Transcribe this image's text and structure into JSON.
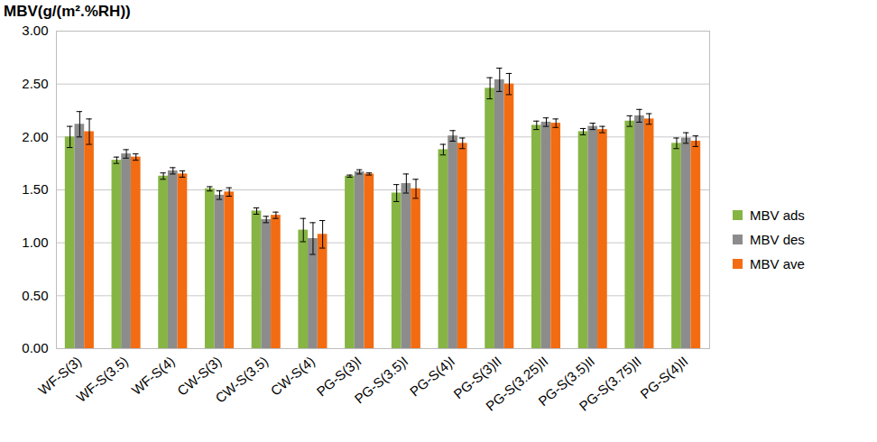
{
  "chart_data": {
    "type": "bar",
    "ylabel": "MBV(g/(m².%RH))",
    "categories": [
      "WF-S(3)",
      "WF-S(3.5)",
      "WF-S(4)",
      "CW-S(3)",
      "CW-S(3.5)",
      "CW-S(4)",
      "PG-S(3)I",
      "PG-S(3.5)I",
      "PG-S(4)I",
      "PG-S(3)II",
      "PG-S(3.25)II",
      "PG-S(3.5)II",
      "PG-S(3.75)II",
      "PG-S(4)II"
    ],
    "series": [
      {
        "name": "MBV ads",
        "color": "#86b544",
        "values": [
          2.0,
          1.78,
          1.63,
          1.51,
          1.3,
          1.12,
          1.63,
          1.47,
          1.88,
          2.46,
          2.11,
          2.05,
          2.15,
          1.94
        ],
        "errors": [
          0.1,
          0.03,
          0.03,
          0.02,
          0.03,
          0.11,
          0.01,
          0.08,
          0.05,
          0.1,
          0.04,
          0.03,
          0.05,
          0.05
        ]
      },
      {
        "name": "MBV des",
        "color": "#8c8c8c",
        "values": [
          2.12,
          1.84,
          1.68,
          1.45,
          1.22,
          1.04,
          1.67,
          1.56,
          2.01,
          2.54,
          2.14,
          2.1,
          2.2,
          1.99
        ],
        "errors": [
          0.12,
          0.04,
          0.03,
          0.04,
          0.03,
          0.15,
          0.02,
          0.09,
          0.05,
          0.11,
          0.04,
          0.03,
          0.06,
          0.05
        ]
      },
      {
        "name": "MBV ave",
        "color": "#f36c12",
        "values": [
          2.05,
          1.81,
          1.65,
          1.48,
          1.26,
          1.08,
          1.65,
          1.51,
          1.94,
          2.5,
          2.13,
          2.07,
          2.17,
          1.96
        ],
        "errors": [
          0.12,
          0.03,
          0.03,
          0.04,
          0.03,
          0.13,
          0.01,
          0.09,
          0.05,
          0.1,
          0.04,
          0.03,
          0.05,
          0.05
        ]
      }
    ],
    "ylim": [
      0,
      3
    ],
    "yticks": [
      {
        "value": 0,
        "label": "0.00"
      },
      {
        "value": 0.5,
        "label": "0.50"
      },
      {
        "value": 1,
        "label": "1.00"
      },
      {
        "value": 1.5,
        "label": "1.50"
      },
      {
        "value": 2,
        "label": "2.00"
      },
      {
        "value": 2.5,
        "label": "2.50"
      },
      {
        "value": 3,
        "label": "3.00"
      }
    ],
    "grid": true,
    "legend": "right"
  }
}
